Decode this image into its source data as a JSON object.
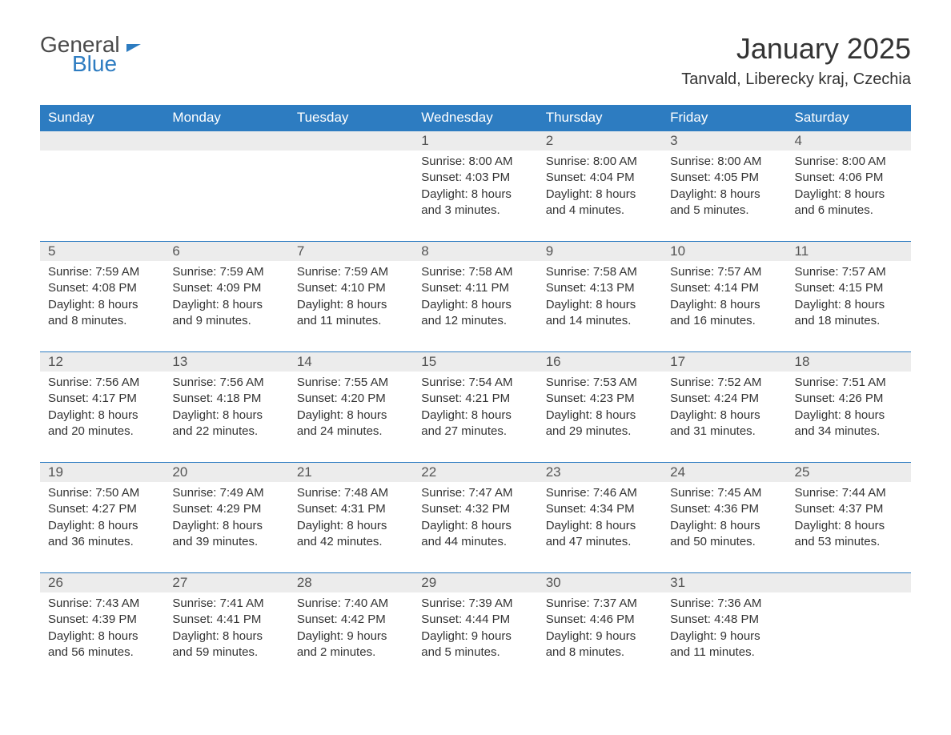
{
  "logo": {
    "text1": "General",
    "text2": "Blue"
  },
  "title": "January 2025",
  "location": "Tanvald, Liberecky kraj, Czechia",
  "colors": {
    "header_bg": "#2d7cc1",
    "header_text": "#ffffff",
    "daynum_bg": "#ececec",
    "daynum_text": "#555555",
    "body_text": "#333333",
    "body_bg": "#ffffff",
    "logo_gray": "#4a4a4a",
    "logo_blue": "#2d7cc1"
  },
  "day_names": [
    "Sunday",
    "Monday",
    "Tuesday",
    "Wednesday",
    "Thursday",
    "Friday",
    "Saturday"
  ],
  "weeks": [
    {
      "numbers": [
        "",
        "",
        "",
        "1",
        "2",
        "3",
        "4"
      ],
      "content": [
        "",
        "",
        "",
        "Sunrise: 8:00 AM\nSunset: 4:03 PM\nDaylight: 8 hours and 3 minutes.",
        "Sunrise: 8:00 AM\nSunset: 4:04 PM\nDaylight: 8 hours and 4 minutes.",
        "Sunrise: 8:00 AM\nSunset: 4:05 PM\nDaylight: 8 hours and 5 minutes.",
        "Sunrise: 8:00 AM\nSunset: 4:06 PM\nDaylight: 8 hours and 6 minutes."
      ]
    },
    {
      "numbers": [
        "5",
        "6",
        "7",
        "8",
        "9",
        "10",
        "11"
      ],
      "content": [
        "Sunrise: 7:59 AM\nSunset: 4:08 PM\nDaylight: 8 hours and 8 minutes.",
        "Sunrise: 7:59 AM\nSunset: 4:09 PM\nDaylight: 8 hours and 9 minutes.",
        "Sunrise: 7:59 AM\nSunset: 4:10 PM\nDaylight: 8 hours and 11 minutes.",
        "Sunrise: 7:58 AM\nSunset: 4:11 PM\nDaylight: 8 hours and 12 minutes.",
        "Sunrise: 7:58 AM\nSunset: 4:13 PM\nDaylight: 8 hours and 14 minutes.",
        "Sunrise: 7:57 AM\nSunset: 4:14 PM\nDaylight: 8 hours and 16 minutes.",
        "Sunrise: 7:57 AM\nSunset: 4:15 PM\nDaylight: 8 hours and 18 minutes."
      ]
    },
    {
      "numbers": [
        "12",
        "13",
        "14",
        "15",
        "16",
        "17",
        "18"
      ],
      "content": [
        "Sunrise: 7:56 AM\nSunset: 4:17 PM\nDaylight: 8 hours and 20 minutes.",
        "Sunrise: 7:56 AM\nSunset: 4:18 PM\nDaylight: 8 hours and 22 minutes.",
        "Sunrise: 7:55 AM\nSunset: 4:20 PM\nDaylight: 8 hours and 24 minutes.",
        "Sunrise: 7:54 AM\nSunset: 4:21 PM\nDaylight: 8 hours and 27 minutes.",
        "Sunrise: 7:53 AM\nSunset: 4:23 PM\nDaylight: 8 hours and 29 minutes.",
        "Sunrise: 7:52 AM\nSunset: 4:24 PM\nDaylight: 8 hours and 31 minutes.",
        "Sunrise: 7:51 AM\nSunset: 4:26 PM\nDaylight: 8 hours and 34 minutes."
      ]
    },
    {
      "numbers": [
        "19",
        "20",
        "21",
        "22",
        "23",
        "24",
        "25"
      ],
      "content": [
        "Sunrise: 7:50 AM\nSunset: 4:27 PM\nDaylight: 8 hours and 36 minutes.",
        "Sunrise: 7:49 AM\nSunset: 4:29 PM\nDaylight: 8 hours and 39 minutes.",
        "Sunrise: 7:48 AM\nSunset: 4:31 PM\nDaylight: 8 hours and 42 minutes.",
        "Sunrise: 7:47 AM\nSunset: 4:32 PM\nDaylight: 8 hours and 44 minutes.",
        "Sunrise: 7:46 AM\nSunset: 4:34 PM\nDaylight: 8 hours and 47 minutes.",
        "Sunrise: 7:45 AM\nSunset: 4:36 PM\nDaylight: 8 hours and 50 minutes.",
        "Sunrise: 7:44 AM\nSunset: 4:37 PM\nDaylight: 8 hours and 53 minutes."
      ]
    },
    {
      "numbers": [
        "26",
        "27",
        "28",
        "29",
        "30",
        "31",
        ""
      ],
      "content": [
        "Sunrise: 7:43 AM\nSunset: 4:39 PM\nDaylight: 8 hours and 56 minutes.",
        "Sunrise: 7:41 AM\nSunset: 4:41 PM\nDaylight: 8 hours and 59 minutes.",
        "Sunrise: 7:40 AM\nSunset: 4:42 PM\nDaylight: 9 hours and 2 minutes.",
        "Sunrise: 7:39 AM\nSunset: 4:44 PM\nDaylight: 9 hours and 5 minutes.",
        "Sunrise: 7:37 AM\nSunset: 4:46 PM\nDaylight: 9 hours and 8 minutes.",
        "Sunrise: 7:36 AM\nSunset: 4:48 PM\nDaylight: 9 hours and 11 minutes.",
        ""
      ]
    }
  ]
}
